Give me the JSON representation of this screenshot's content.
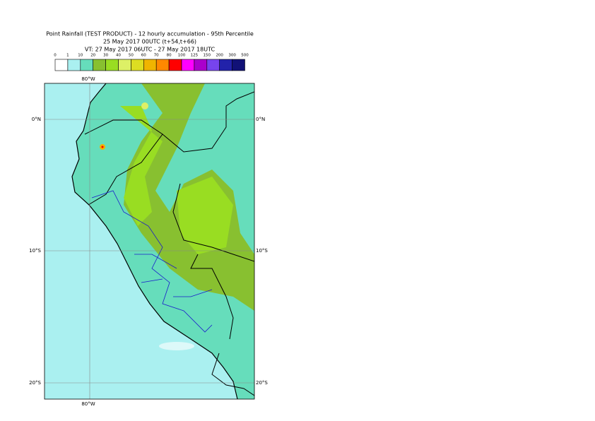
{
  "header": {
    "title": "Point Rainfall (TEST PRODUCT) - 12 hourly accumulation - 95th Percentile",
    "base": "25 May 2017 00UTC (t+54,t+66)",
    "valid": "VT: 27 May 2017 06UTC - 27 May 2017 18UTC"
  },
  "legend": {
    "labels": [
      0,
      1,
      10,
      20,
      30,
      40,
      50,
      60,
      70,
      80,
      100,
      125,
      150,
      200,
      300,
      500
    ],
    "colors": [
      "#ffffff",
      "#aaf0f0",
      "#66ddbb",
      "#88c030",
      "#99dd22",
      "#ddf066",
      "#dddd22",
      "#f0b400",
      "#ff8800",
      "#ff0000",
      "#ff00ff",
      "#aa00cc",
      "#7744ee",
      "#2222aa",
      "#111177"
    ]
  },
  "map": {
    "lon_label": "80°W",
    "lat_labels": [
      "0°N",
      "10°S",
      "20°S"
    ]
  }
}
